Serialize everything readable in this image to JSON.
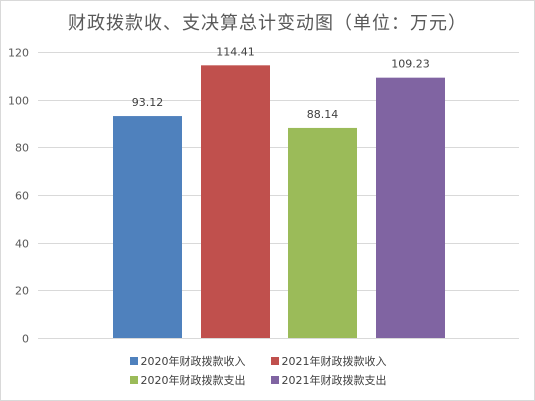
{
  "chart_data": {
    "type": "bar",
    "title": "财政拨款收、支决算总计变动图（单位：万元）",
    "categories": [
      "2020年财政拨款收入",
      "2021年财政拨款收入",
      "2020年财政拨款支出",
      "2021年财政拨款支出"
    ],
    "values": [
      93.12,
      114.41,
      88.14,
      109.23
    ],
    "value_labels": [
      "93.12",
      "114.41",
      "88.14",
      "109.23"
    ],
    "colors": [
      "#4f81bd",
      "#c0504d",
      "#9bbb59",
      "#8064a2"
    ],
    "ylim": [
      0,
      120
    ],
    "yticks": [
      0,
      20,
      40,
      60,
      80,
      100,
      120
    ],
    "ytick_labels": [
      "0",
      "20",
      "40",
      "60",
      "80",
      "100",
      "120"
    ],
    "grid": true,
    "legend": {
      "placement": "bottom",
      "entries": [
        "2020年财政拨款收入",
        "2021年财政拨款收入",
        "2020年财政拨款支出",
        "2021年财政拨款支出"
      ]
    }
  }
}
